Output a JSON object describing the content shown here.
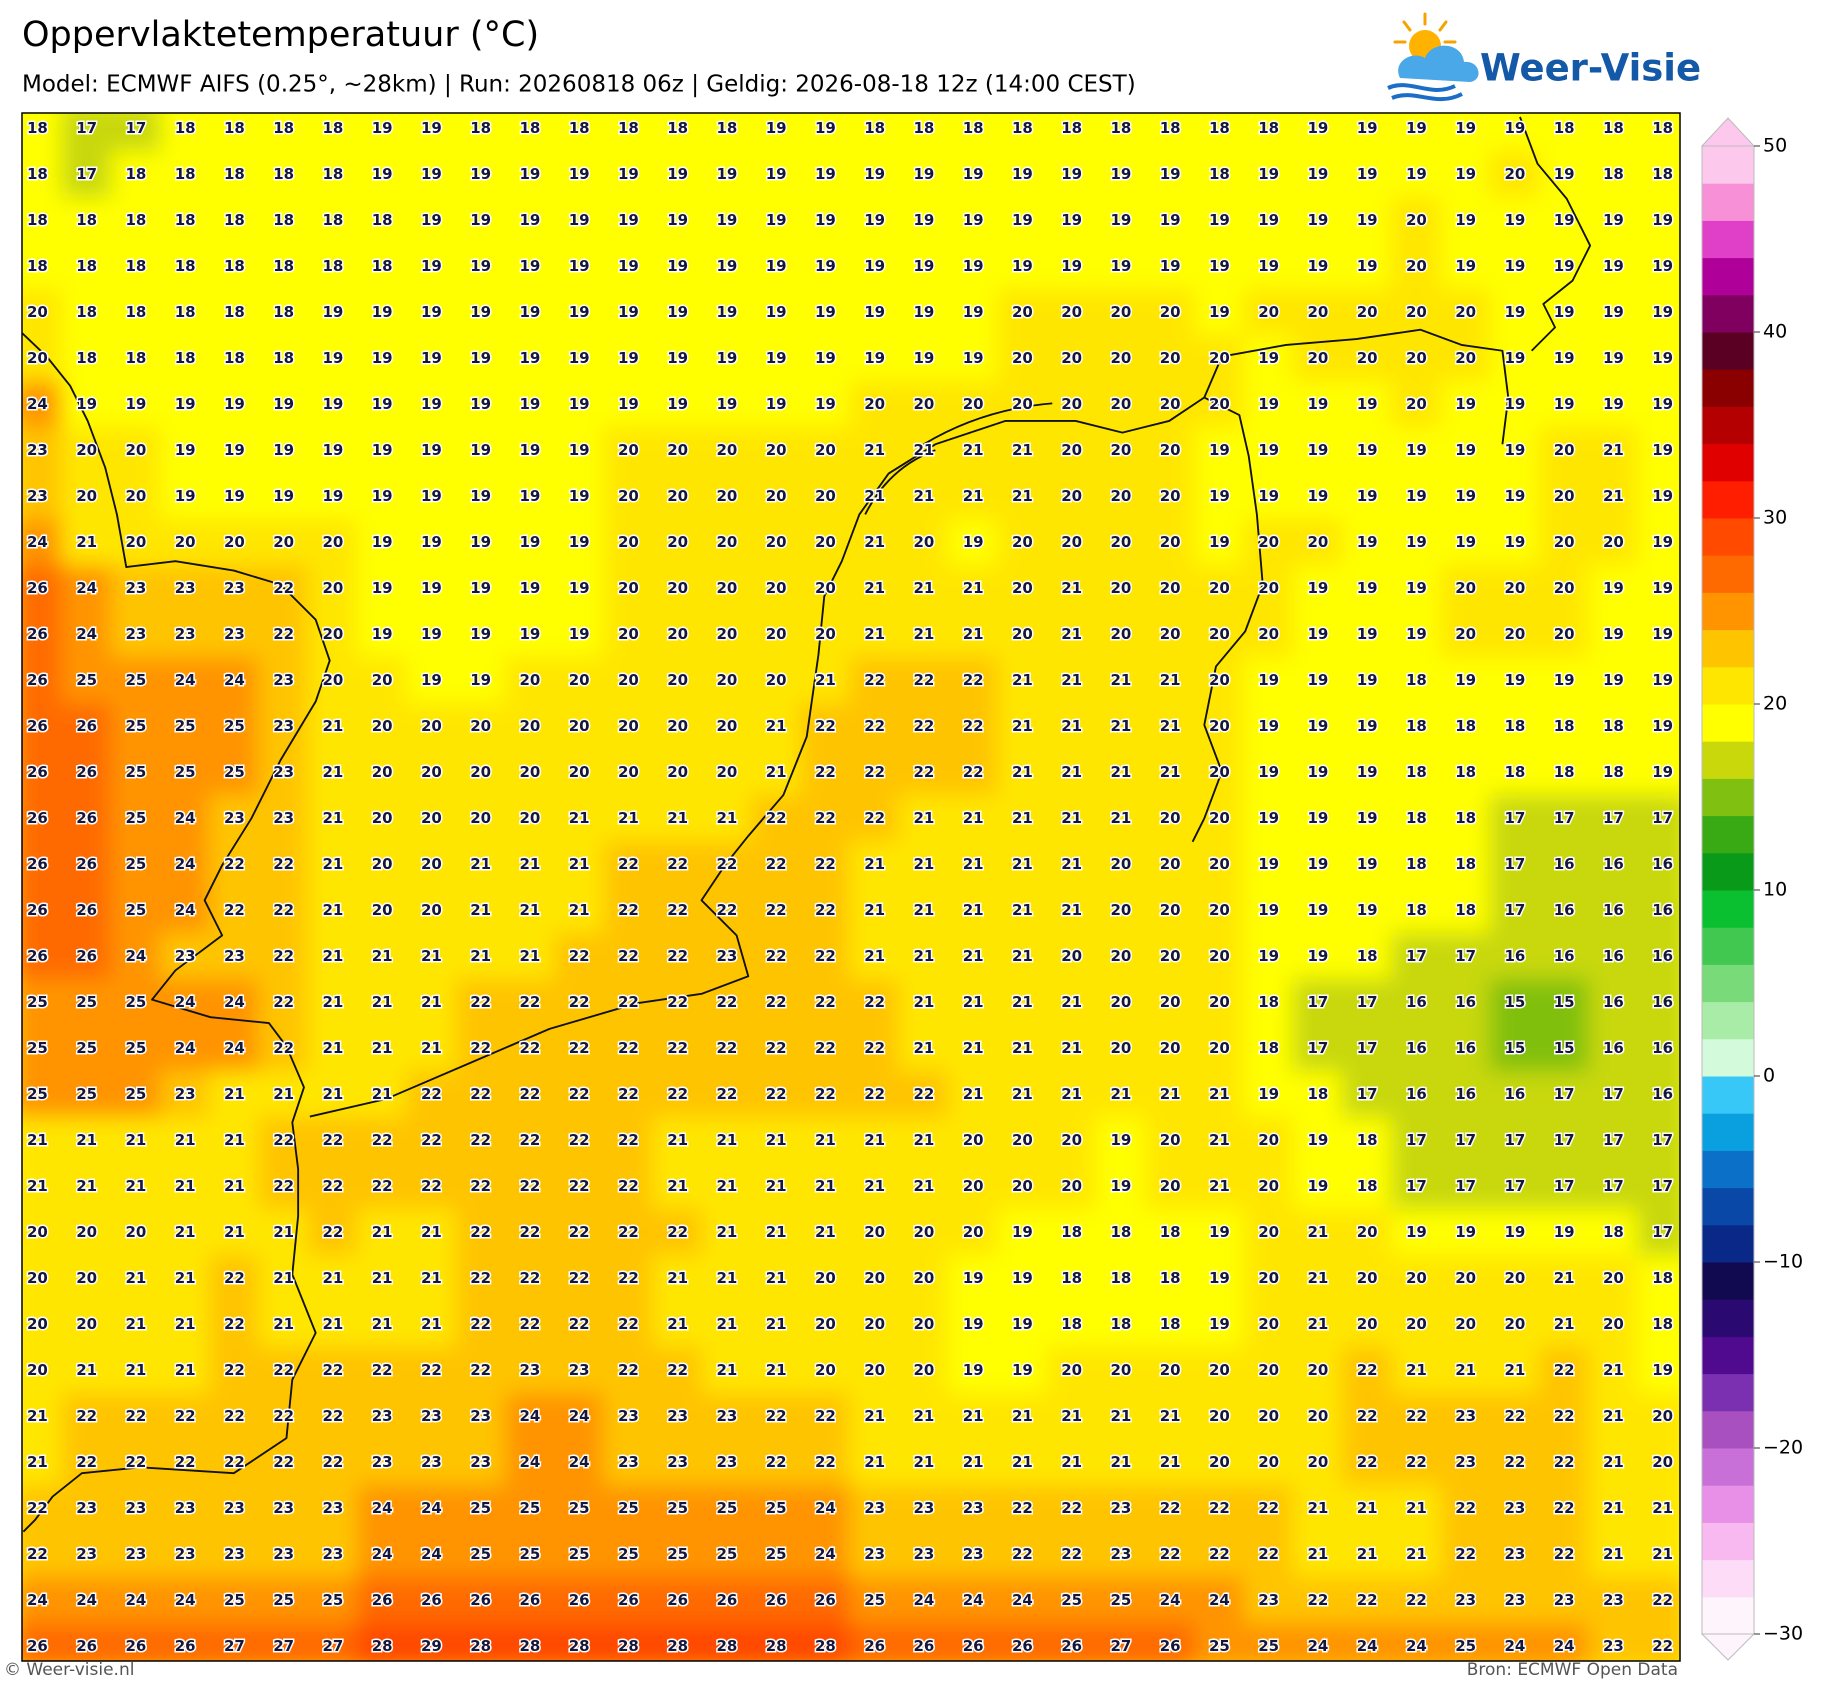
{
  "header": {
    "title": "Oppervlaktetemperatuur (°C)",
    "subtitle": "Model: ECMWF AIFS (0.25°, ~28km)  |  Run: 20260818 06z  |  Geldig: 2026-08-18 12z (14:00 CEST)",
    "logo": "Weer-Visie"
  },
  "grid": {
    "values": [
      [
        18,
        17,
        17,
        18,
        18,
        18,
        18,
        19,
        19,
        18,
        18,
        18,
        18,
        18,
        18,
        19,
        19,
        18,
        18,
        18,
        18,
        18,
        18,
        18,
        18,
        18,
        19,
        19,
        19,
        19,
        19,
        18,
        18,
        18
      ],
      [
        18,
        17,
        18,
        18,
        18,
        18,
        18,
        19,
        19,
        19,
        19,
        19,
        19,
        19,
        19,
        19,
        19,
        19,
        19,
        19,
        19,
        19,
        19,
        19,
        18,
        19,
        19,
        19,
        19,
        19,
        20,
        19,
        18,
        18
      ],
      [
        18,
        18,
        18,
        18,
        18,
        18,
        18,
        18,
        19,
        19,
        19,
        19,
        19,
        19,
        19,
        19,
        19,
        19,
        19,
        19,
        19,
        19,
        19,
        19,
        19,
        19,
        19,
        19,
        20,
        19,
        19,
        19,
        19,
        19
      ],
      [
        18,
        18,
        18,
        18,
        18,
        18,
        18,
        18,
        19,
        19,
        19,
        19,
        19,
        19,
        19,
        19,
        19,
        19,
        19,
        19,
        19,
        19,
        19,
        19,
        19,
        19,
        19,
        19,
        20,
        19,
        19,
        19,
        19,
        19
      ],
      [
        20,
        18,
        18,
        18,
        18,
        18,
        19,
        19,
        19,
        19,
        19,
        19,
        19,
        19,
        19,
        19,
        19,
        19,
        19,
        19,
        20,
        20,
        20,
        20,
        19,
        20,
        20,
        20,
        20,
        20,
        19,
        19,
        19,
        19
      ],
      [
        20,
        18,
        18,
        18,
        18,
        18,
        19,
        19,
        19,
        19,
        19,
        19,
        19,
        19,
        19,
        19,
        19,
        19,
        19,
        19,
        20,
        20,
        20,
        20,
        20,
        19,
        20,
        20,
        20,
        20,
        19,
        19,
        19,
        19
      ],
      [
        24,
        19,
        19,
        19,
        19,
        19,
        19,
        19,
        19,
        19,
        19,
        19,
        19,
        19,
        19,
        19,
        19,
        20,
        20,
        20,
        20,
        20,
        20,
        20,
        20,
        19,
        19,
        19,
        20,
        19,
        19,
        19,
        19,
        19
      ],
      [
        23,
        20,
        20,
        19,
        19,
        19,
        19,
        19,
        19,
        19,
        19,
        19,
        20,
        20,
        20,
        20,
        20,
        21,
        21,
        21,
        21,
        20,
        20,
        20,
        19,
        19,
        19,
        19,
        19,
        19,
        19,
        20,
        21,
        19
      ],
      [
        23,
        20,
        20,
        19,
        19,
        19,
        19,
        19,
        19,
        19,
        19,
        19,
        20,
        20,
        20,
        20,
        20,
        21,
        21,
        21,
        21,
        20,
        20,
        20,
        19,
        19,
        19,
        19,
        19,
        19,
        19,
        20,
        21,
        19
      ],
      [
        24,
        21,
        20,
        20,
        20,
        20,
        20,
        19,
        19,
        19,
        19,
        19,
        20,
        20,
        20,
        20,
        20,
        21,
        20,
        19,
        20,
        20,
        20,
        20,
        19,
        20,
        20,
        19,
        19,
        19,
        19,
        20,
        20,
        19
      ],
      [
        26,
        24,
        23,
        23,
        23,
        22,
        20,
        19,
        19,
        19,
        19,
        19,
        20,
        20,
        20,
        20,
        20,
        21,
        21,
        21,
        20,
        21,
        20,
        20,
        20,
        20,
        19,
        19,
        19,
        20,
        20,
        20,
        19,
        19
      ],
      [
        26,
        24,
        23,
        23,
        23,
        22,
        20,
        19,
        19,
        19,
        19,
        19,
        20,
        20,
        20,
        20,
        20,
        21,
        21,
        21,
        20,
        21,
        20,
        20,
        20,
        20,
        19,
        19,
        19,
        20,
        20,
        20,
        19,
        19
      ],
      [
        26,
        25,
        25,
        24,
        24,
        23,
        20,
        20,
        19,
        19,
        20,
        20,
        20,
        20,
        20,
        20,
        21,
        22,
        22,
        22,
        21,
        21,
        21,
        21,
        20,
        19,
        19,
        19,
        18,
        19,
        19,
        19,
        19,
        19
      ],
      [
        26,
        26,
        25,
        25,
        25,
        23,
        21,
        20,
        20,
        20,
        20,
        20,
        20,
        20,
        20,
        21,
        22,
        22,
        22,
        22,
        21,
        21,
        21,
        21,
        20,
        19,
        19,
        19,
        18,
        18,
        18,
        18,
        18,
        19
      ],
      [
        26,
        26,
        25,
        25,
        25,
        23,
        21,
        20,
        20,
        20,
        20,
        20,
        20,
        20,
        20,
        21,
        22,
        22,
        22,
        22,
        21,
        21,
        21,
        21,
        20,
        19,
        19,
        19,
        18,
        18,
        18,
        18,
        18,
        19
      ],
      [
        26,
        26,
        25,
        24,
        23,
        23,
        21,
        20,
        20,
        20,
        20,
        21,
        21,
        21,
        21,
        22,
        22,
        22,
        21,
        21,
        21,
        21,
        21,
        20,
        20,
        19,
        19,
        19,
        18,
        18,
        17,
        17,
        17,
        17
      ],
      [
        26,
        26,
        25,
        24,
        22,
        22,
        21,
        20,
        20,
        21,
        21,
        21,
        22,
        22,
        22,
        22,
        22,
        21,
        21,
        21,
        21,
        21,
        20,
        20,
        20,
        19,
        19,
        19,
        18,
        18,
        17,
        16,
        16,
        16
      ],
      [
        26,
        26,
        25,
        24,
        22,
        22,
        21,
        20,
        20,
        21,
        21,
        21,
        22,
        22,
        22,
        22,
        22,
        21,
        21,
        21,
        21,
        21,
        20,
        20,
        20,
        19,
        19,
        19,
        18,
        18,
        17,
        16,
        16,
        16
      ],
      [
        26,
        26,
        24,
        23,
        23,
        22,
        21,
        21,
        21,
        21,
        21,
        22,
        22,
        22,
        23,
        22,
        22,
        21,
        21,
        21,
        21,
        20,
        20,
        20,
        20,
        19,
        19,
        18,
        17,
        17,
        16,
        16,
        16,
        16
      ],
      [
        25,
        25,
        25,
        24,
        24,
        22,
        21,
        21,
        21,
        22,
        22,
        22,
        22,
        22,
        22,
        22,
        22,
        22,
        21,
        21,
        21,
        21,
        20,
        20,
        20,
        18,
        17,
        17,
        16,
        16,
        15,
        15,
        16,
        16
      ],
      [
        25,
        25,
        25,
        24,
        24,
        22,
        21,
        21,
        21,
        22,
        22,
        22,
        22,
        22,
        22,
        22,
        22,
        22,
        21,
        21,
        21,
        21,
        20,
        20,
        20,
        18,
        17,
        17,
        16,
        16,
        15,
        15,
        16,
        16
      ],
      [
        25,
        25,
        25,
        23,
        21,
        21,
        21,
        21,
        22,
        22,
        22,
        22,
        22,
        22,
        22,
        22,
        22,
        22,
        22,
        21,
        21,
        21,
        21,
        21,
        21,
        19,
        18,
        17,
        16,
        16,
        16,
        17,
        17,
        16
      ],
      [
        21,
        21,
        21,
        21,
        21,
        22,
        22,
        22,
        22,
        22,
        22,
        22,
        22,
        21,
        21,
        21,
        21,
        21,
        21,
        20,
        20,
        20,
        19,
        20,
        21,
        20,
        19,
        18,
        17,
        17,
        17,
        17,
        17,
        17
      ],
      [
        21,
        21,
        21,
        21,
        21,
        22,
        22,
        22,
        22,
        22,
        22,
        22,
        22,
        21,
        21,
        21,
        21,
        21,
        21,
        20,
        20,
        20,
        19,
        20,
        21,
        20,
        19,
        18,
        17,
        17,
        17,
        17,
        17,
        17
      ],
      [
        20,
        20,
        20,
        21,
        21,
        21,
        22,
        21,
        21,
        22,
        22,
        22,
        22,
        22,
        21,
        21,
        21,
        20,
        20,
        20,
        19,
        18,
        18,
        18,
        19,
        20,
        21,
        20,
        19,
        19,
        19,
        19,
        18,
        17
      ],
      [
        20,
        20,
        21,
        21,
        22,
        21,
        21,
        21,
        21,
        22,
        22,
        22,
        22,
        21,
        21,
        21,
        20,
        20,
        20,
        19,
        19,
        18,
        18,
        18,
        19,
        20,
        21,
        20,
        20,
        20,
        20,
        21,
        20,
        18
      ],
      [
        20,
        20,
        21,
        21,
        22,
        21,
        21,
        21,
        21,
        22,
        22,
        22,
        22,
        21,
        21,
        21,
        20,
        20,
        20,
        19,
        19,
        18,
        18,
        18,
        19,
        20,
        21,
        20,
        20,
        20,
        20,
        21,
        20,
        18
      ],
      [
        20,
        21,
        21,
        21,
        22,
        22,
        22,
        22,
        22,
        22,
        23,
        23,
        22,
        22,
        21,
        21,
        20,
        20,
        20,
        19,
        19,
        20,
        20,
        20,
        20,
        20,
        20,
        22,
        21,
        21,
        21,
        22,
        21,
        19
      ],
      [
        21,
        22,
        22,
        22,
        22,
        22,
        22,
        23,
        23,
        23,
        24,
        24,
        23,
        23,
        23,
        22,
        22,
        21,
        21,
        21,
        21,
        21,
        21,
        21,
        20,
        20,
        20,
        22,
        22,
        23,
        22,
        22,
        21,
        20
      ],
      [
        21,
        22,
        22,
        22,
        22,
        22,
        22,
        23,
        23,
        23,
        24,
        24,
        23,
        23,
        23,
        22,
        22,
        21,
        21,
        21,
        21,
        21,
        21,
        21,
        20,
        20,
        20,
        22,
        22,
        23,
        22,
        22,
        21,
        20
      ],
      [
        22,
        23,
        23,
        23,
        23,
        23,
        23,
        24,
        24,
        25,
        25,
        25,
        25,
        25,
        25,
        25,
        24,
        23,
        23,
        23,
        22,
        22,
        23,
        22,
        22,
        22,
        21,
        21,
        21,
        22,
        23,
        22,
        21,
        21
      ],
      [
        22,
        23,
        23,
        23,
        23,
        23,
        23,
        24,
        24,
        25,
        25,
        25,
        25,
        25,
        25,
        25,
        24,
        23,
        23,
        23,
        22,
        22,
        23,
        22,
        22,
        22,
        21,
        21,
        21,
        22,
        23,
        22,
        21,
        21
      ],
      [
        24,
        24,
        24,
        24,
        25,
        25,
        25,
        26,
        26,
        26,
        26,
        26,
        26,
        26,
        26,
        26,
        26,
        25,
        24,
        24,
        24,
        25,
        25,
        24,
        24,
        23,
        22,
        22,
        22,
        23,
        23,
        23,
        23,
        22
      ],
      [
        26,
        26,
        26,
        26,
        27,
        27,
        27,
        28,
        29,
        28,
        28,
        28,
        28,
        28,
        28,
        28,
        28,
        26,
        26,
        26,
        26,
        26,
        27,
        26,
        25,
        25,
        24,
        24,
        24,
        25,
        24,
        24,
        23,
        22
      ]
    ]
  },
  "colorbar": {
    "lim": [
      -30,
      50
    ],
    "ticks": [
      {
        "value": -30,
        "label": "−30"
      },
      {
        "value": -20,
        "label": "−20"
      },
      {
        "value": -10,
        "label": "−10"
      },
      0,
      10,
      20,
      30,
      40,
      50
    ],
    "colors": [
      "#fdf4fc",
      "#fcdcf6",
      "#f8b8f0",
      "#e890e8",
      "#c870d8",
      "#a850c0",
      "#7a30b0",
      "#500a90",
      "#2a0a70",
      "#120a50",
      "#0a2888",
      "#0a48a8",
      "#0a70c8",
      "#0aa0e0",
      "#38c8f8",
      "#d4fadc",
      "#a8eca8",
      "#78da78",
      "#40c850",
      "#0ac030",
      "#0a9a1a",
      "#3aaa14",
      "#80c010",
      "#c8d80a",
      "#ffff00",
      "#ffe600",
      "#ffc400",
      "#ff9400",
      "#ff6a00",
      "#ff4a00",
      "#ff1e00",
      "#e00000",
      "#b40000",
      "#8a0000",
      "#5a0022",
      "#800060",
      "#b0009a",
      "#e040c8",
      "#f890d8",
      "#fcc8ec"
    ]
  },
  "footer": {
    "left": "© Weer-visie.nl",
    "right": "Bron: ECMWF Open Data"
  }
}
